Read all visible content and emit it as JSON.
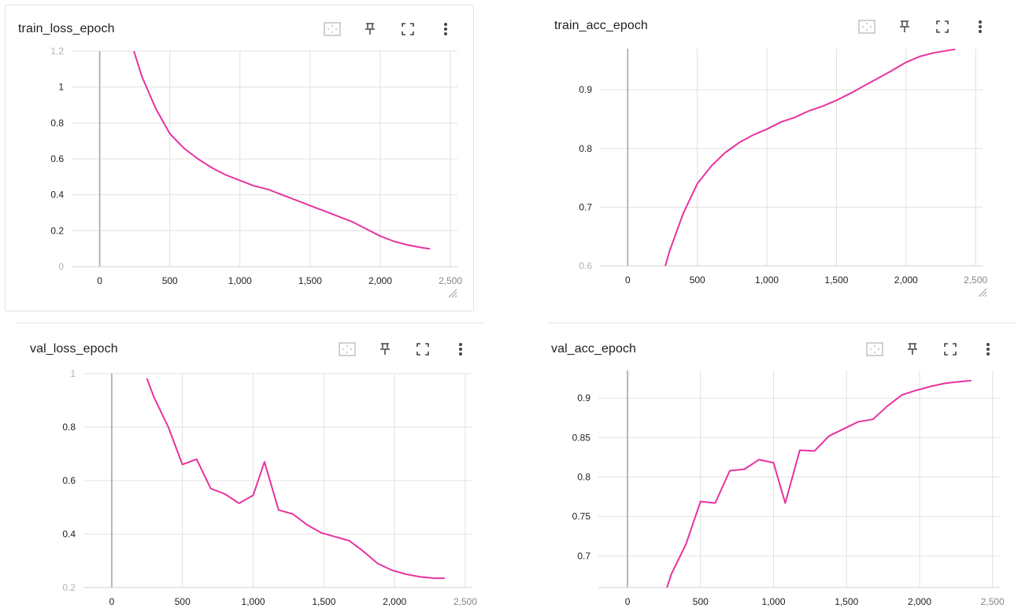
{
  "colors": {
    "line": "#e832a0",
    "grid": "#e0e0e0",
    "zero_axis": "#a7a7a7",
    "tick_text": "#212121"
  },
  "toolbar_icons": [
    "fit-domain-icon",
    "pin-icon",
    "fullscreen-icon",
    "more-vert-icon"
  ],
  "chart_data": [
    {
      "type": "line",
      "title": "train_loss_epoch",
      "xlim": [
        -200,
        2550
      ],
      "ylim": [
        0,
        1.2
      ],
      "xticks": [
        0,
        500,
        1000,
        1500,
        2000,
        2500
      ],
      "xtick_labels": [
        "0",
        "500",
        "1,000",
        "1,500",
        "2,000",
        "2,500"
      ],
      "yticks": [
        0,
        0.2,
        0.4,
        0.6,
        0.8,
        1,
        1.2
      ],
      "ytick_labels": [
        "0",
        "0.2",
        "0.4",
        "0.6",
        "0.8",
        "1",
        "1.2"
      ],
      "grid": true,
      "series": [
        {
          "x": [
            240,
            300,
            400,
            500,
            600,
            700,
            800,
            900,
            1000,
            1100,
            1200,
            1300,
            1400,
            1500,
            1600,
            1700,
            1800,
            1900,
            2000,
            2100,
            2200,
            2300,
            2350
          ],
          "y": [
            1.21,
            1.06,
            0.88,
            0.74,
            0.66,
            0.6,
            0.55,
            0.51,
            0.48,
            0.45,
            0.43,
            0.4,
            0.37,
            0.34,
            0.31,
            0.28,
            0.25,
            0.21,
            0.17,
            0.14,
            0.12,
            0.105,
            0.1
          ]
        }
      ]
    },
    {
      "type": "line",
      "title": "train_acc_epoch",
      "xlim": [
        -200,
        2550
      ],
      "ylim": [
        0.6,
        0.97
      ],
      "xticks": [
        0,
        500,
        1000,
        1500,
        2000,
        2500
      ],
      "xtick_labels": [
        "0",
        "500",
        "1,000",
        "1,500",
        "2,000",
        "2,500"
      ],
      "yticks": [
        0.6,
        0.7,
        0.8,
        0.9
      ],
      "ytick_labels": [
        "0.6",
        "0.7",
        "0.8",
        "0.9"
      ],
      "grid": true,
      "series": [
        {
          "x": [
            270,
            300,
            400,
            500,
            600,
            700,
            800,
            900,
            1000,
            1100,
            1200,
            1300,
            1400,
            1500,
            1600,
            1700,
            1800,
            1900,
            2000,
            2100,
            2200,
            2300,
            2350
          ],
          "y": [
            0.6,
            0.625,
            0.69,
            0.74,
            0.77,
            0.793,
            0.81,
            0.823,
            0.833,
            0.845,
            0.853,
            0.864,
            0.872,
            0.882,
            0.894,
            0.907,
            0.92,
            0.933,
            0.947,
            0.957,
            0.963,
            0.967,
            0.969
          ]
        }
      ]
    },
    {
      "type": "line",
      "title": "val_loss_epoch",
      "xlim": [
        -200,
        2550
      ],
      "ylim": [
        0.2,
        1.0
      ],
      "xticks": [
        0,
        500,
        1000,
        1500,
        2000,
        2500
      ],
      "xtick_labels": [
        "0",
        "500",
        "1,000",
        "1,500",
        "2,000",
        "2,500"
      ],
      "yticks": [
        0.2,
        0.4,
        0.6,
        0.8,
        1
      ],
      "ytick_labels": [
        "0.2",
        "0.4",
        "0.6",
        "0.8",
        "1"
      ],
      "grid": true,
      "series": [
        {
          "x": [
            250,
            300,
            400,
            500,
            600,
            700,
            800,
            900,
            1000,
            1080,
            1180,
            1280,
            1380,
            1480,
            1580,
            1680,
            1780,
            1880,
            1980,
            2080,
            2180,
            2280,
            2350
          ],
          "y": [
            0.98,
            0.91,
            0.8,
            0.66,
            0.68,
            0.57,
            0.55,
            0.515,
            0.545,
            0.67,
            0.49,
            0.475,
            0.435,
            0.405,
            0.39,
            0.375,
            0.335,
            0.29,
            0.265,
            0.25,
            0.24,
            0.235,
            0.235
          ]
        }
      ]
    },
    {
      "type": "line",
      "title": "val_acc_epoch",
      "xlim": [
        -200,
        2550
      ],
      "ylim": [
        0.66,
        0.935
      ],
      "xticks": [
        0,
        500,
        1000,
        1500,
        2000,
        2500
      ],
      "xtick_labels": [
        "0",
        "500",
        "1,000",
        "1,500",
        "2,000",
        "2,500"
      ],
      "yticks": [
        0.7,
        0.75,
        0.8,
        0.85,
        0.9
      ],
      "ytick_labels": [
        "0.7",
        "0.75",
        "0.8",
        "0.85",
        "0.9"
      ],
      "grid": true,
      "series": [
        {
          "x": [
            270,
            300,
            400,
            500,
            600,
            700,
            800,
            900,
            1000,
            1080,
            1180,
            1280,
            1380,
            1480,
            1580,
            1680,
            1780,
            1880,
            1980,
            2080,
            2180,
            2280,
            2350
          ],
          "y": [
            0.66,
            0.677,
            0.715,
            0.769,
            0.767,
            0.808,
            0.81,
            0.822,
            0.818,
            0.767,
            0.834,
            0.833,
            0.852,
            0.861,
            0.87,
            0.873,
            0.89,
            0.904,
            0.91,
            0.915,
            0.919,
            0.921,
            0.922
          ]
        }
      ]
    }
  ]
}
